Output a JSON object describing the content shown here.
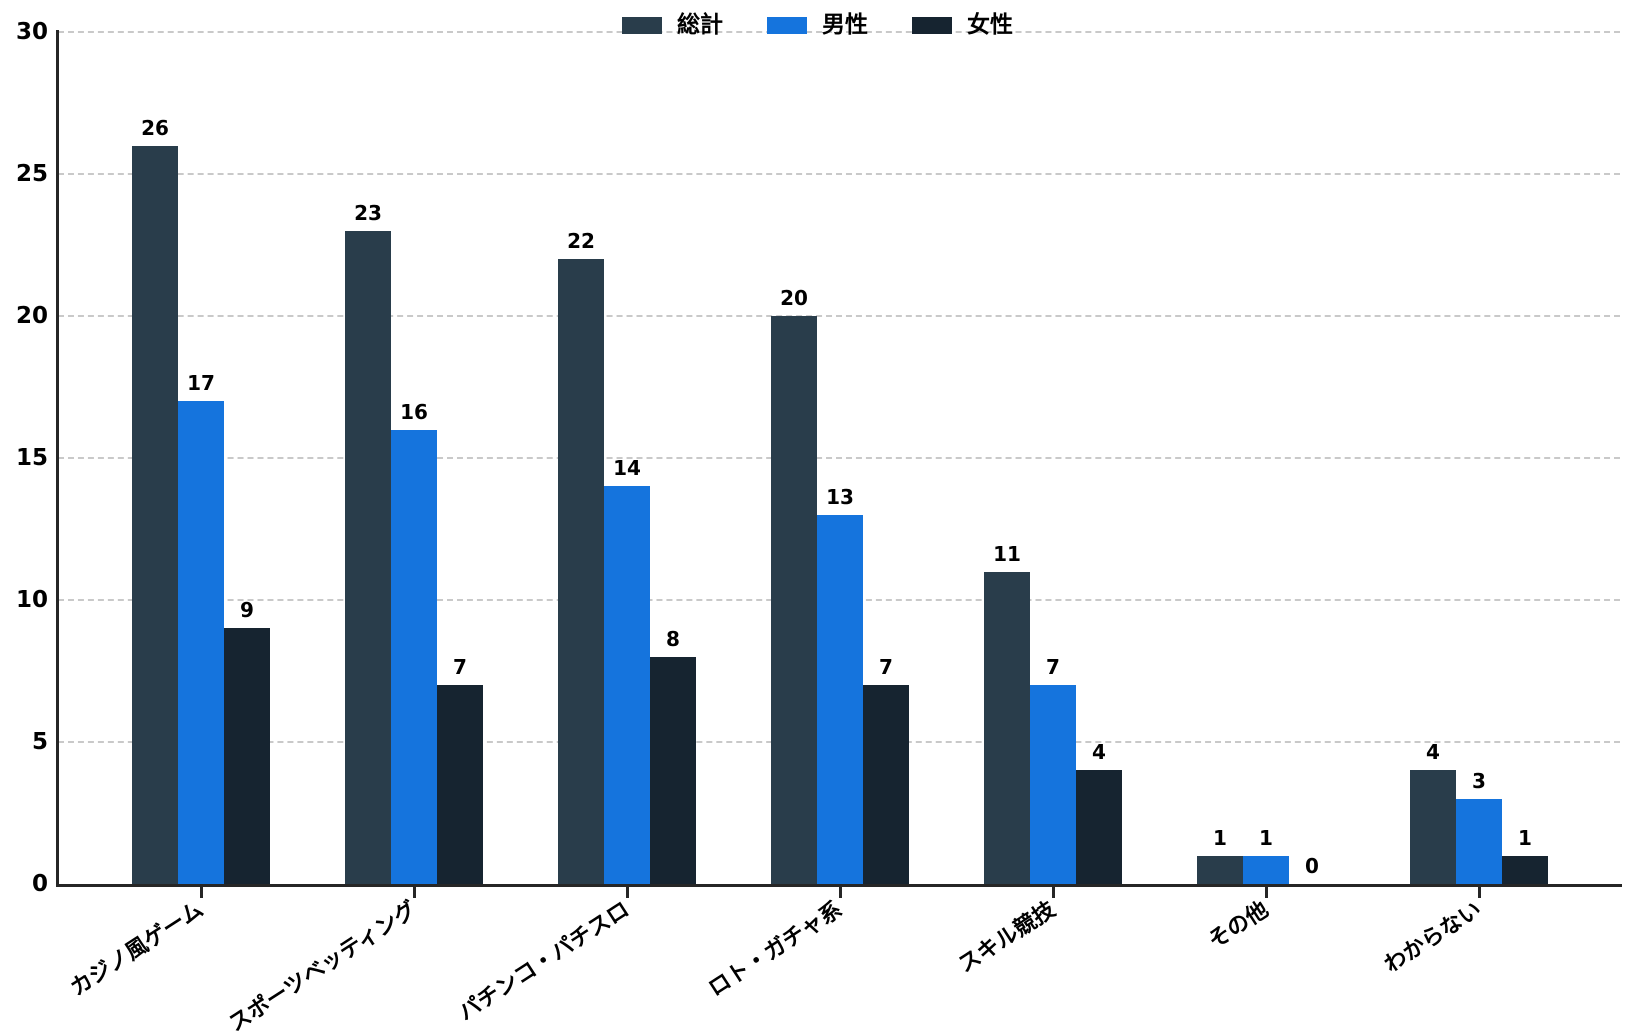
{
  "chart_data": {
    "type": "bar",
    "title": "",
    "categories": [
      "カジノ風ゲーム",
      "スポーツベッティング",
      "パチンコ・パチスロ",
      "ロト・ガチャ系",
      "スキル競技",
      "その他",
      "わからない"
    ],
    "series": [
      {
        "name": "総計",
        "color": "#293d4b",
        "values": [
          26,
          23,
          22,
          20,
          11,
          1,
          4
        ]
      },
      {
        "name": "男性",
        "color": "#1574dd",
        "values": [
          17,
          16,
          14,
          13,
          7,
          1,
          3
        ]
      },
      {
        "name": "女性",
        "color": "#162430",
        "values": [
          9,
          7,
          8,
          7,
          4,
          0,
          1
        ]
      }
    ],
    "xlabel": "",
    "ylabel": "",
    "ylim": [
      0,
      30
    ],
    "yticks": [
      0,
      5,
      10,
      15,
      20,
      25,
      30
    ],
    "grid": "horizontal-dashed",
    "legend_position": "top-center",
    "bar_value_labels": true
  },
  "colors": {
    "background": "#ffffff",
    "axis": "#262626",
    "gridline": "#c9c9c9",
    "label_text": "#000000"
  }
}
